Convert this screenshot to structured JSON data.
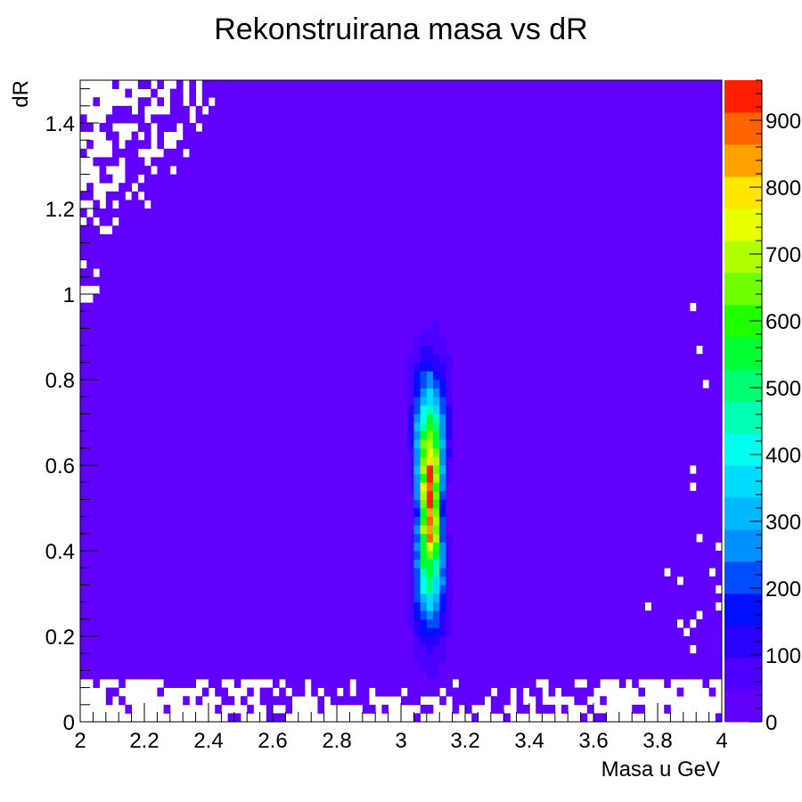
{
  "chart_data": {
    "type": "heatmap",
    "title": "Rekonstruirana masa vs dR",
    "xlabel": "Masa u GeV",
    "ylabel": "dR",
    "xlim": [
      2,
      4
    ],
    "ylim": [
      0,
      1.5
    ],
    "x_ticks": [
      {
        "value": 2,
        "label": "2"
      },
      {
        "value": 2.2,
        "label": "2.2"
      },
      {
        "value": 2.4,
        "label": "2.4"
      },
      {
        "value": 2.6,
        "label": "2.6"
      },
      {
        "value": 2.8,
        "label": "2.8"
      },
      {
        "value": 3,
        "label": "3"
      },
      {
        "value": 3.2,
        "label": "3.2"
      },
      {
        "value": 3.4,
        "label": "3.4"
      },
      {
        "value": 3.6,
        "label": "3.6"
      },
      {
        "value": 3.8,
        "label": "3.8"
      },
      {
        "value": 4,
        "label": "4"
      }
    ],
    "y_ticks": [
      {
        "value": 0,
        "label": "0"
      },
      {
        "value": 0.2,
        "label": "0.2"
      },
      {
        "value": 0.4,
        "label": "0.4"
      },
      {
        "value": 0.6,
        "label": "0.6"
      },
      {
        "value": 0.8,
        "label": "0.8"
      },
      {
        "value": 1,
        "label": "1"
      },
      {
        "value": 1.2,
        "label": "1.2"
      },
      {
        "value": 1.4,
        "label": "1.4"
      }
    ],
    "bins_x": 100,
    "bins_y": 75,
    "z_range": [
      0,
      960
    ],
    "colorbar_levels": 20,
    "colorbar_ticks": [
      {
        "value": 0,
        "label": "0"
      },
      {
        "value": 100,
        "label": "100"
      },
      {
        "value": 200,
        "label": "200"
      },
      {
        "value": 300,
        "label": "300"
      },
      {
        "value": 400,
        "label": "400"
      },
      {
        "value": 500,
        "label": "500"
      },
      {
        "value": 600,
        "label": "600"
      },
      {
        "value": 700,
        "label": "700"
      },
      {
        "value": 800,
        "label": "800"
      },
      {
        "value": 900,
        "label": "900"
      }
    ],
    "peak": {
      "mass": 3.09,
      "dR": 0.52,
      "max_count": 950
    },
    "palette": [
      "#6200ff",
      "#4c00ff",
      "#2a00ff",
      "#0010ff",
      "#004cff",
      "#0090ff",
      "#00b8ff",
      "#00dcff",
      "#00ffee",
      "#00ffb0",
      "#00ff70",
      "#00ff30",
      "#20ff00",
      "#70ff00",
      "#b0ff00",
      "#e8ff00",
      "#ffe600",
      "#ffa000",
      "#ff6400",
      "#ff1e00"
    ],
    "grid": false,
    "legend": "colorbar-right"
  }
}
